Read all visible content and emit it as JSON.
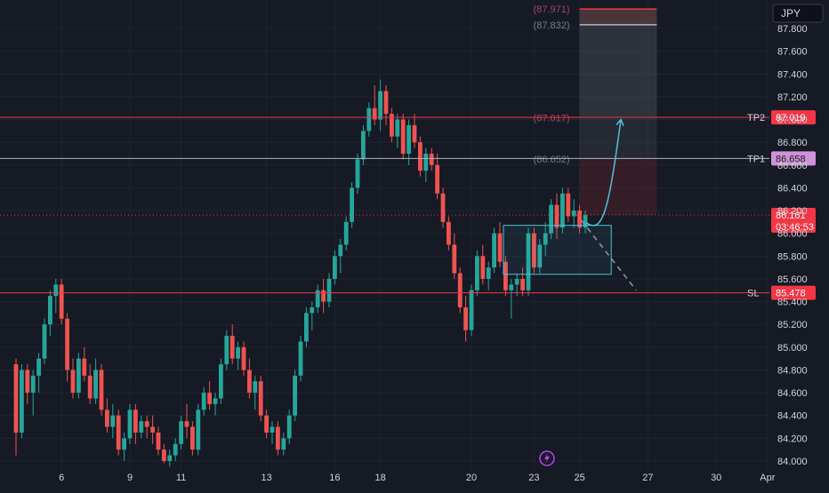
{
  "currency_label": "JPY",
  "colors": {
    "background": "#161a25",
    "grid": "#1f2431",
    "up": "#26a69a",
    "down": "#ef5350",
    "tp_line": "#f23645",
    "tp1_line": "#b2b5be",
    "axis_text": "#d1d4dc",
    "projection": "#4fc3d9",
    "target_zone": "#5d606b",
    "risk_zone": "#7a2430",
    "price_tag": "#f23645",
    "tp1_tag": "#ce93d8"
  },
  "levels": [
    {
      "name": "TP2",
      "price": 87.019,
      "price_label": "87.019",
      "kind": "tp2"
    },
    {
      "name": "TP1",
      "price": 86.658,
      "price_label": "86.658",
      "kind": "tp1"
    },
    {
      "name": "SL",
      "price": 85.478,
      "price_label": "85.478",
      "kind": "sl"
    }
  ],
  "current_price": {
    "price": 86.161,
    "label": "86.161",
    "countdown": "03:46:53"
  },
  "zone_labels": [
    {
      "text": "(87.971)",
      "price": 87.971
    },
    {
      "text": "(87.832)",
      "price": 87.832
    },
    {
      "text": "(87.017)",
      "price": 87.017
    },
    {
      "text": "(86.652)",
      "price": 86.652
    }
  ],
  "event_icon": "lightning-icon",
  "chart_data": {
    "type": "candlestick",
    "y_ticks": [
      "84.000",
      "84.200",
      "84.400",
      "84.600",
      "84.800",
      "85.000",
      "85.200",
      "85.400",
      "85.600",
      "85.800",
      "86.000",
      "86.200",
      "86.400",
      "86.600",
      "86.800",
      "87.000",
      "87.200",
      "87.400",
      "87.600",
      "87.800"
    ],
    "x_ticks": [
      {
        "label": "6",
        "bar": 8
      },
      {
        "label": "9",
        "bar": 20
      },
      {
        "label": "11",
        "bar": 29
      },
      {
        "label": "13",
        "bar": 44
      },
      {
        "label": "16",
        "bar": 56
      },
      {
        "label": "18",
        "bar": 64
      },
      {
        "label": "20",
        "bar": 80
      },
      {
        "label": "23",
        "bar": 91
      },
      {
        "label": "25",
        "bar": 99
      },
      {
        "label": "27",
        "bar": 111
      },
      {
        "label": "30",
        "bar": 123
      },
      {
        "label": "Apr",
        "bar": 132
      }
    ],
    "ylim": [
      83.95,
      88.05
    ],
    "bar_count": 136,
    "candles": [
      [
        84.85,
        84.9,
        84.05,
        84.25
      ],
      [
        84.25,
        84.85,
        84.2,
        84.8
      ],
      [
        84.8,
        84.85,
        84.5,
        84.6
      ],
      [
        84.6,
        84.8,
        84.4,
        84.75
      ],
      [
        84.75,
        84.95,
        84.6,
        84.9
      ],
      [
        84.9,
        85.25,
        84.85,
        85.2
      ],
      [
        85.2,
        85.5,
        85.1,
        85.45
      ],
      [
        85.45,
        85.6,
        85.3,
        85.55
      ],
      [
        85.55,
        85.6,
        85.2,
        85.25
      ],
      [
        85.25,
        85.3,
        84.7,
        84.8
      ],
      [
        84.8,
        84.9,
        84.55,
        84.6
      ],
      [
        84.6,
        84.95,
        84.55,
        84.9
      ],
      [
        84.9,
        85.0,
        84.7,
        84.75
      ],
      [
        84.75,
        84.85,
        84.5,
        84.55
      ],
      [
        84.55,
        84.9,
        84.5,
        84.8
      ],
      [
        84.8,
        84.85,
        84.4,
        84.45
      ],
      [
        84.45,
        84.55,
        84.25,
        84.3
      ],
      [
        84.3,
        84.5,
        84.2,
        84.4
      ],
      [
        84.4,
        84.45,
        84.05,
        84.1
      ],
      [
        84.1,
        84.25,
        84.0,
        84.2
      ],
      [
        84.2,
        84.5,
        84.15,
        84.45
      ],
      [
        84.45,
        84.5,
        84.15,
        84.25
      ],
      [
        84.25,
        84.4,
        84.2,
        84.35
      ],
      [
        84.35,
        84.4,
        84.2,
        84.3
      ],
      [
        84.3,
        84.4,
        84.15,
        84.25
      ],
      [
        84.25,
        84.3,
        84.05,
        84.1
      ],
      [
        84.1,
        84.15,
        83.98,
        84.0
      ],
      [
        84.0,
        84.1,
        83.95,
        84.05
      ],
      [
        84.05,
        84.2,
        84.0,
        84.15
      ],
      [
        84.15,
        84.4,
        84.1,
        84.35
      ],
      [
        84.35,
        84.5,
        84.2,
        84.3
      ],
      [
        84.3,
        84.35,
        84.05,
        84.1
      ],
      [
        84.1,
        84.5,
        84.05,
        84.45
      ],
      [
        84.45,
        84.65,
        84.4,
        84.6
      ],
      [
        84.6,
        84.7,
        84.45,
        84.5
      ],
      [
        84.5,
        84.6,
        84.4,
        84.55
      ],
      [
        84.55,
        84.9,
        84.5,
        84.85
      ],
      [
        84.85,
        85.15,
        84.8,
        85.1
      ],
      [
        85.1,
        85.2,
        84.85,
        84.9
      ],
      [
        84.9,
        85.05,
        84.8,
        85.0
      ],
      [
        85.0,
        85.05,
        84.75,
        84.8
      ],
      [
        84.8,
        84.9,
        84.55,
        84.6
      ],
      [
        84.6,
        84.75,
        84.45,
        84.7
      ],
      [
        84.7,
        84.75,
        84.35,
        84.4
      ],
      [
        84.4,
        84.45,
        84.2,
        84.25
      ],
      [
        84.25,
        84.35,
        84.15,
        84.3
      ],
      [
        84.3,
        84.35,
        84.05,
        84.1
      ],
      [
        84.1,
        84.25,
        84.05,
        84.2
      ],
      [
        84.2,
        84.45,
        84.15,
        84.4
      ],
      [
        84.4,
        84.8,
        84.35,
        84.75
      ],
      [
        84.75,
        85.1,
        84.7,
        85.05
      ],
      [
        85.05,
        85.35,
        85.0,
        85.3
      ],
      [
        85.3,
        85.4,
        85.15,
        85.35
      ],
      [
        85.35,
        85.55,
        85.3,
        85.5
      ],
      [
        85.5,
        85.6,
        85.3,
        85.4
      ],
      [
        85.4,
        85.65,
        85.35,
        85.6
      ],
      [
        85.6,
        85.85,
        85.55,
        85.8
      ],
      [
        85.8,
        85.95,
        85.65,
        85.9
      ],
      [
        85.9,
        86.15,
        85.85,
        86.1
      ],
      [
        86.1,
        86.45,
        86.05,
        86.4
      ],
      [
        86.4,
        86.7,
        86.35,
        86.65
      ],
      [
        86.65,
        86.95,
        86.6,
        86.9
      ],
      [
        86.9,
        87.15,
        86.85,
        87.1
      ],
      [
        87.1,
        87.3,
        86.95,
        87.0
      ],
      [
        87.0,
        87.35,
        86.9,
        87.25
      ],
      [
        87.25,
        87.3,
        86.95,
        87.05
      ],
      [
        87.05,
        87.1,
        86.8,
        86.85
      ],
      [
        86.85,
        87.05,
        86.75,
        87.0
      ],
      [
        87.0,
        87.05,
        86.65,
        86.7
      ],
      [
        86.7,
        87.0,
        86.6,
        86.95
      ],
      [
        86.95,
        87.05,
        86.75,
        86.8
      ],
      [
        86.8,
        86.85,
        86.5,
        86.55
      ],
      [
        86.55,
        86.75,
        86.45,
        86.7
      ],
      [
        86.7,
        86.75,
        86.55,
        86.6
      ],
      [
        86.6,
        86.7,
        86.3,
        86.35
      ],
      [
        86.35,
        86.4,
        86.05,
        86.1
      ],
      [
        86.1,
        86.15,
        85.85,
        85.9
      ],
      [
        85.9,
        86.0,
        85.6,
        85.65
      ],
      [
        85.65,
        85.7,
        85.3,
        85.35
      ],
      [
        85.35,
        85.45,
        85.05,
        85.15
      ],
      [
        85.15,
        85.55,
        85.1,
        85.5
      ],
      [
        85.5,
        85.85,
        85.45,
        85.8
      ],
      [
        85.8,
        85.9,
        85.55,
        85.6
      ],
      [
        85.6,
        85.75,
        85.5,
        85.7
      ],
      [
        85.7,
        86.05,
        85.65,
        86.0
      ],
      [
        86.0,
        86.1,
        85.7,
        85.75
      ],
      [
        85.75,
        85.8,
        85.45,
        85.5
      ],
      [
        85.5,
        85.6,
        85.25,
        85.55
      ],
      [
        85.55,
        85.65,
        85.45,
        85.6
      ],
      [
        85.6,
        85.7,
        85.45,
        85.5
      ],
      [
        85.5,
        86.05,
        85.45,
        86.0
      ],
      [
        86.0,
        86.05,
        85.65,
        85.7
      ],
      [
        85.7,
        85.95,
        85.65,
        85.9
      ],
      [
        85.9,
        86.1,
        85.8,
        86.0
      ],
      [
        86.0,
        86.3,
        85.95,
        86.25
      ],
      [
        86.25,
        86.35,
        85.95,
        86.05
      ],
      [
        86.05,
        86.4,
        86.0,
        86.35
      ],
      [
        86.35,
        86.4,
        86.1,
        86.15
      ],
      [
        86.15,
        86.3,
        86.05,
        86.2
      ],
      [
        86.2,
        86.25,
        86.0,
        86.05
      ],
      [
        86.05,
        86.2,
        86.0,
        86.161
      ]
    ]
  }
}
